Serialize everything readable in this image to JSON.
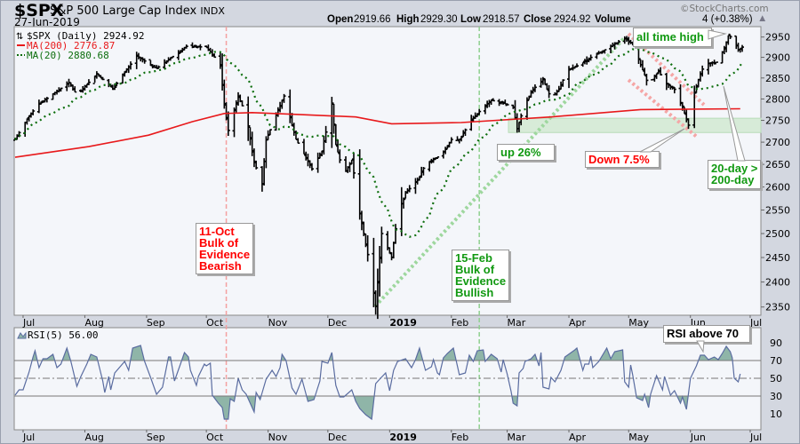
{
  "header": {
    "symbol": "$SPX",
    "name": "S&P 500 Large Cap Index",
    "exchange": "INDX",
    "date": "27-Jun-2019",
    "open_label": "Open",
    "open": "2919.66",
    "high_label": "High",
    "high": "2929.30",
    "low_label": "Low",
    "low": "2918.57",
    "close_label": "Close",
    "close": "2924.92",
    "volume_label": "Volume",
    "change_visible": "4 (+0.38%)",
    "copyright": "©StockCharts.com"
  },
  "legend": {
    "price": "$SPX (Daily) 2924.92",
    "ma200": "MA(200) 2776.87",
    "ma20": "MA(20) 2880.68",
    "rsi": "RSI(5) 56.00"
  },
  "colors": {
    "ma200": "#e8191b",
    "ma20": "#0d6e0d",
    "bars": "#000000",
    "rsi_line": "#5a6ca0",
    "rsi_fill": "#8fb5a8",
    "bearish": "#ff0000",
    "bullish": "#119911",
    "zone": "#cfe9cf"
  },
  "annotations": {
    "bearish": [
      "11-Oct",
      "Bulk of",
      "Evidence",
      "Bearish"
    ],
    "bullish": [
      "15-Feb",
      "Bulk of",
      "Evidence",
      "Bullish"
    ],
    "up": "up 26%",
    "down": "Down 7.5%",
    "cross": [
      "20-day >",
      "200-day"
    ],
    "ath": "all time high",
    "rsi70": "RSI above 70"
  },
  "chart_data": {
    "type": "ohlc",
    "title": "$SPX S&P 500 Large Cap Index (Daily)",
    "x_unit": "calendar days from first bar",
    "y_scale": "log",
    "ylim": [
      2350,
      2950
    ],
    "y_ticks": [
      2350,
      2400,
      2450,
      2500,
      2550,
      2600,
      2650,
      2700,
      2750,
      2800,
      2850,
      2900,
      2950
    ],
    "x_ticks": [
      {
        "label": "Jul",
        "day": 4
      },
      {
        "label": "Aug",
        "day": 35
      },
      {
        "label": "Sep",
        "day": 66
      },
      {
        "label": "Oct",
        "day": 96
      },
      {
        "label": "Nov",
        "day": 127
      },
      {
        "label": "Dec",
        "day": 157
      },
      {
        "label": "2019",
        "day": 188,
        "bold": true
      },
      {
        "label": "Feb",
        "day": 219
      },
      {
        "label": "Mar",
        "day": 247
      },
      {
        "label": "Apr",
        "day": 278
      },
      {
        "label": "May",
        "day": 308
      },
      {
        "label": "Jun",
        "day": 339
      },
      {
        "label": "Jul",
        "day": 369
      }
    ],
    "close_keypoints": [
      [
        0,
        2706
      ],
      [
        7,
        2761
      ],
      [
        12,
        2788
      ],
      [
        27,
        2839
      ],
      [
        31,
        2809
      ],
      [
        41,
        2860
      ],
      [
        49,
        2824
      ],
      [
        61,
        2903
      ],
      [
        71,
        2873
      ],
      [
        86,
        2927
      ],
      [
        96,
        2925
      ],
      [
        103,
        2882
      ],
      [
        105,
        2786
      ],
      [
        107,
        2727
      ],
      [
        112,
        2807
      ],
      [
        116,
        2761
      ],
      [
        120,
        2654
      ],
      [
        124,
        2607
      ],
      [
        126,
        2706
      ],
      [
        135,
        2807
      ],
      [
        141,
        2706
      ],
      [
        149,
        2640
      ],
      [
        154,
        2680
      ],
      [
        159,
        2788
      ],
      [
        161,
        2694
      ],
      [
        165,
        2626
      ],
      [
        169,
        2660
      ],
      [
        173,
        2543
      ],
      [
        177,
        2456
      ],
      [
        181,
        2351
      ],
      [
        184,
        2500
      ],
      [
        189,
        2450
      ],
      [
        192,
        2540
      ],
      [
        196,
        2587
      ],
      [
        202,
        2615
      ],
      [
        206,
        2650
      ],
      [
        214,
        2672
      ],
      [
        219,
        2706
      ],
      [
        223,
        2706
      ],
      [
        229,
        2750
      ],
      [
        235,
        2781
      ],
      [
        239,
        2797
      ],
      [
        245,
        2790
      ],
      [
        250,
        2781
      ],
      [
        252,
        2731
      ],
      [
        256,
        2790
      ],
      [
        260,
        2823
      ],
      [
        265,
        2846
      ],
      [
        269,
        2801
      ],
      [
        273,
        2823
      ],
      [
        277,
        2867
      ],
      [
        284,
        2884
      ],
      [
        290,
        2903
      ],
      [
        297,
        2921
      ],
      [
        306,
        2947
      ],
      [
        310,
        2932
      ],
      [
        314,
        2882
      ],
      [
        318,
        2832
      ],
      [
        323,
        2867
      ],
      [
        326,
        2839
      ],
      [
        331,
        2823
      ],
      [
        335,
        2781
      ],
      [
        338,
        2739
      ],
      [
        340,
        2801
      ],
      [
        343,
        2846
      ],
      [
        346,
        2884
      ],
      [
        352,
        2888
      ],
      [
        356,
        2921
      ],
      [
        358,
        2954
      ],
      [
        360,
        2947
      ],
      [
        363,
        2919
      ],
      [
        365,
        2925
      ]
    ],
    "ma200_keypoints": [
      [
        0,
        2666
      ],
      [
        37,
        2690
      ],
      [
        67,
        2716
      ],
      [
        89,
        2747
      ],
      [
        105,
        2766
      ],
      [
        119,
        2768
      ],
      [
        141,
        2764
      ],
      [
        171,
        2758
      ],
      [
        189,
        2742
      ],
      [
        224,
        2745
      ],
      [
        269,
        2758
      ],
      [
        314,
        2775
      ],
      [
        364,
        2777
      ]
    ],
    "support_zone": [
      2722,
      2755
    ],
    "event_lines": [
      {
        "label": "11-Oct",
        "day": 106,
        "color": "bearish"
      },
      {
        "label": "15-Feb",
        "day": 233,
        "color": "bullish"
      }
    ],
    "rsi": {
      "period": 5,
      "ylim": [
        0,
        100
      ],
      "ticks": [
        10,
        30,
        50,
        70,
        90
      ],
      "levels": [
        30,
        50,
        70
      ],
      "last": 56.0,
      "points": [
        [
          0,
          31
        ],
        [
          2,
          37
        ],
        [
          4,
          37
        ],
        [
          7,
          57
        ],
        [
          9,
          74
        ],
        [
          10,
          81
        ],
        [
          12,
          62
        ],
        [
          14,
          72
        ],
        [
          16,
          72
        ],
        [
          19,
          77
        ],
        [
          21,
          62
        ],
        [
          23,
          66
        ],
        [
          26,
          84
        ],
        [
          28,
          69
        ],
        [
          31,
          41
        ],
        [
          33,
          52
        ],
        [
          36,
          66
        ],
        [
          38,
          77
        ],
        [
          41,
          74
        ],
        [
          44,
          47
        ],
        [
          45,
          34
        ],
        [
          47,
          52
        ],
        [
          48,
          37
        ],
        [
          50,
          56
        ],
        [
          55,
          69
        ],
        [
          57,
          59
        ],
        [
          59,
          84
        ],
        [
          63,
          87
        ],
        [
          65,
          69
        ],
        [
          68,
          51
        ],
        [
          71,
          32
        ],
        [
          74,
          40
        ],
        [
          77,
          74
        ],
        [
          78,
          74
        ],
        [
          80,
          47
        ],
        [
          83,
          66
        ],
        [
          85,
          79
        ],
        [
          87,
          74
        ],
        [
          88,
          59
        ],
        [
          91,
          42
        ],
        [
          92,
          52
        ],
        [
          95,
          66
        ],
        [
          96,
          64
        ],
        [
          98,
          67
        ],
        [
          99,
          31
        ],
        [
          102,
          22
        ],
        [
          104,
          17
        ],
        [
          105,
          4
        ],
        [
          107,
          4
        ],
        [
          108,
          27
        ],
        [
          110,
          24
        ],
        [
          112,
          50
        ],
        [
          114,
          37
        ],
        [
          116,
          32
        ],
        [
          120,
          12
        ],
        [
          121,
          34
        ],
        [
          123,
          26
        ],
        [
          126,
          49
        ],
        [
          129,
          59
        ],
        [
          131,
          52
        ],
        [
          133,
          62
        ],
        [
          134,
          77
        ],
        [
          136,
          70
        ],
        [
          139,
          39
        ],
        [
          141,
          32
        ],
        [
          144,
          49
        ],
        [
          147,
          24
        ],
        [
          150,
          26
        ],
        [
          153,
          47
        ],
        [
          154,
          69
        ],
        [
          157,
          67
        ],
        [
          159,
          79
        ],
        [
          161,
          42
        ],
        [
          163,
          29
        ],
        [
          165,
          29
        ],
        [
          169,
          37
        ],
        [
          171,
          24
        ],
        [
          173,
          16
        ],
        [
          176,
          9
        ],
        [
          179,
          4
        ],
        [
          181,
          44
        ],
        [
          183,
          49
        ],
        [
          186,
          56
        ],
        [
          188,
          36
        ],
        [
          190,
          59
        ],
        [
          192,
          69
        ],
        [
          196,
          72
        ],
        [
          199,
          62
        ],
        [
          201,
          71
        ],
        [
          203,
          84
        ],
        [
          206,
          59
        ],
        [
          209,
          63
        ],
        [
          210,
          71
        ],
        [
          212,
          56
        ],
        [
          213,
          54
        ],
        [
          215,
          73
        ],
        [
          217,
          78
        ],
        [
          220,
          84
        ],
        [
          223,
          54
        ],
        [
          226,
          56
        ],
        [
          228,
          76
        ],
        [
          230,
          69
        ],
        [
          232,
          81
        ],
        [
          235,
          82
        ],
        [
          236,
          69
        ],
        [
          239,
          77
        ],
        [
          242,
          72
        ],
        [
          244,
          57
        ],
        [
          245,
          71
        ],
        [
          247,
          55
        ],
        [
          249,
          35
        ],
        [
          250,
          22
        ],
        [
          252,
          19
        ],
        [
          253,
          56
        ],
        [
          255,
          61
        ],
        [
          256,
          69
        ],
        [
          259,
          72
        ],
        [
          261,
          77
        ],
        [
          263,
          64
        ],
        [
          264,
          79
        ],
        [
          265,
          40
        ],
        [
          268,
          38
        ],
        [
          269,
          51
        ],
        [
          271,
          46
        ],
        [
          274,
          59
        ],
        [
          276,
          74
        ],
        [
          281,
          82
        ],
        [
          282,
          84
        ],
        [
          285,
          59
        ],
        [
          286,
          66
        ],
        [
          288,
          66
        ],
        [
          289,
          75
        ],
        [
          290,
          62
        ],
        [
          293,
          69
        ],
        [
          297,
          84
        ],
        [
          299,
          72
        ],
        [
          301,
          80
        ],
        [
          305,
          82
        ],
        [
          306,
          46
        ],
        [
          308,
          40
        ],
        [
          309,
          65
        ],
        [
          310,
          54
        ],
        [
          312,
          28
        ],
        [
          315,
          25
        ],
        [
          316,
          32
        ],
        [
          318,
          17
        ],
        [
          319,
          32
        ],
        [
          322,
          53
        ],
        [
          325,
          37
        ],
        [
          326,
          52
        ],
        [
          329,
          31
        ],
        [
          331,
          36
        ],
        [
          334,
          22
        ],
        [
          335,
          29
        ],
        [
          337,
          15
        ],
        [
          339,
          50
        ],
        [
          342,
          64
        ],
        [
          344,
          76
        ],
        [
          346,
          76
        ],
        [
          348,
          71
        ],
        [
          351,
          74
        ],
        [
          353,
          71
        ],
        [
          355,
          78
        ],
        [
          357,
          86
        ],
        [
          359,
          80
        ],
        [
          360,
          73
        ],
        [
          361,
          50
        ],
        [
          363,
          46
        ],
        [
          364,
          55
        ]
      ]
    }
  }
}
